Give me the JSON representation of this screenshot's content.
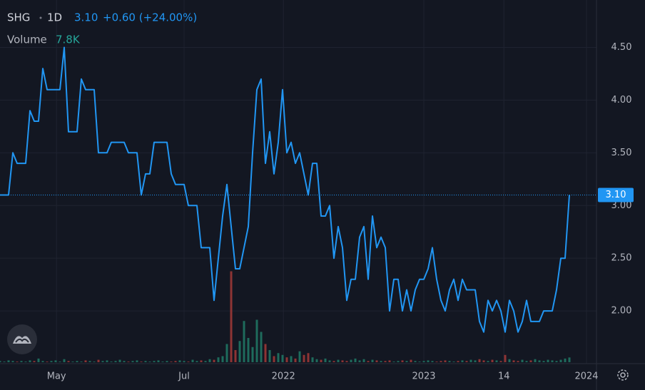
{
  "chart_data": {
    "type": "line",
    "symbol": "SHG",
    "interval": "1D",
    "last_price": {
      "value": 3.1,
      "label": "3.10"
    },
    "change": "+0.60 (+24.00%)",
    "series": [
      {
        "name": "SHG",
        "color": "#2196f3",
        "values": [
          3.1,
          3.1,
          3.1,
          3.5,
          3.4,
          3.4,
          3.4,
          3.9,
          3.8,
          3.8,
          4.3,
          4.1,
          4.1,
          4.1,
          4.1,
          4.5,
          3.7,
          3.7,
          3.7,
          4.2,
          4.1,
          4.1,
          4.1,
          3.5,
          3.5,
          3.5,
          3.6,
          3.6,
          3.6,
          3.6,
          3.5,
          3.5,
          3.5,
          3.1,
          3.3,
          3.3,
          3.6,
          3.6,
          3.6,
          3.6,
          3.3,
          3.2,
          3.2,
          3.2,
          3.0,
          3.0,
          3.0,
          2.6,
          2.6,
          2.6,
          2.1,
          2.5,
          2.9,
          3.2,
          2.8,
          2.4,
          2.4,
          2.6,
          2.8,
          3.5,
          4.1,
          4.2,
          3.4,
          3.7,
          3.3,
          3.6,
          4.1,
          3.5,
          3.6,
          3.4,
          3.5,
          3.3,
          3.1,
          3.4,
          3.4,
          2.9,
          2.9,
          3.0,
          2.5,
          2.8,
          2.6,
          2.1,
          2.3,
          2.3,
          2.7,
          2.8,
          2.3,
          2.9,
          2.6,
          2.7,
          2.6,
          2.0,
          2.3,
          2.3,
          2.0,
          2.2,
          2.0,
          2.2,
          2.3,
          2.3,
          2.4,
          2.6,
          2.3,
          2.1,
          2.0,
          2.2,
          2.3,
          2.1,
          2.3,
          2.2,
          2.2,
          2.2,
          1.9,
          1.8,
          2.1,
          2.0,
          2.1,
          2.0,
          1.8,
          2.1,
          2.0,
          1.8,
          1.9,
          2.1,
          1.9,
          1.9,
          1.9,
          2.0,
          2.0,
          2.0,
          2.2,
          2.5,
          2.5,
          3.1
        ]
      },
      {
        "name": "Volume",
        "axis": "volume",
        "up_color": "#1e6b5c",
        "down_color": "#8e3434",
        "last_value_label": "7.8K",
        "values": [
          2000,
          1000,
          3000,
          2000,
          1000,
          2000,
          1000,
          3000,
          2000,
          6000,
          2000,
          1000,
          2000,
          3000,
          1000,
          5000,
          2000,
          1000,
          2000,
          1000,
          3000,
          2000,
          1000,
          4000,
          2000,
          3000,
          1000,
          2000,
          4000,
          2000,
          1000,
          2000,
          3000,
          1000,
          2000,
          1000,
          2000,
          3000,
          1000,
          2000,
          1000,
          2000,
          3000,
          2000,
          1000,
          4000,
          2000,
          3000,
          2000,
          5000,
          4000,
          8000,
          10000,
          30000,
          150000,
          20000,
          35000,
          68000,
          40000,
          25000,
          70000,
          50000,
          30000,
          20000,
          10000,
          15000,
          12000,
          8000,
          10000,
          6000,
          18000,
          12000,
          15000,
          8000,
          5000,
          4000,
          6000,
          3000,
          2000,
          4000,
          3000,
          2000,
          4000,
          6000,
          3000,
          5000,
          2000,
          4000,
          3000,
          2000,
          2000,
          3000,
          1000,
          2000,
          3000,
          2000,
          4000,
          2000,
          1000,
          2000,
          3000,
          2000,
          1000,
          2000,
          3000,
          2000,
          1000,
          2000,
          3000,
          2000,
          4000,
          3000,
          5000,
          3000,
          2000,
          4000,
          3000,
          2000,
          12000,
          5000,
          3000,
          2000,
          4000,
          2000,
          3000,
          5000,
          3000,
          2000,
          4000,
          3000,
          2000,
          4000,
          6000,
          7800
        ]
      }
    ],
    "xlim": [
      0,
      139.33
    ],
    "xticks": [
      {
        "value": 13.2,
        "label": "May"
      },
      {
        "value": 43,
        "label": "Jul"
      },
      {
        "value": 66.2,
        "label": "2022"
      },
      {
        "value": 99,
        "label": "2023"
      },
      {
        "value": 117.7,
        "label": "14"
      },
      {
        "value": 137,
        "label": "2024"
      }
    ],
    "ylim": [
      1.5,
      4.95
    ],
    "yticks": [
      {
        "value": 2,
        "label": "2.00"
      },
      {
        "value": 2.5,
        "label": "2.50"
      },
      {
        "value": 3,
        "label": "3.00"
      },
      {
        "value": 3.5,
        "label": "3.50"
      },
      {
        "value": 4,
        "label": "4.00"
      },
      {
        "value": 4.5,
        "label": "4.50"
      }
    ],
    "volume_lim": [
      0,
      160000
    ],
    "grid": true
  }
}
